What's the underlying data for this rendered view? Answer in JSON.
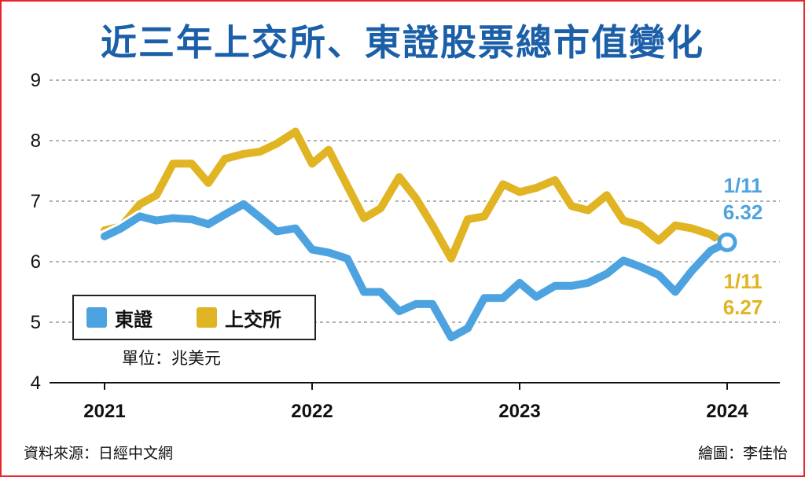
{
  "title": "近三年上交所、東證股票總市值變化",
  "unit": "單位：兆美元",
  "source": "資料來源：日經中文網",
  "credit": "繪圖：李佳怡",
  "colors": {
    "tse": "#4da3e0",
    "sse": "#e0b422",
    "title": "#1b5fa8",
    "border": "#e8242c"
  },
  "chart_data": {
    "type": "line",
    "title": "近三年上交所、東證股票總市值變化",
    "ylabel": "",
    "xlabel": "",
    "ylim": [
      4,
      9
    ],
    "yticks": [
      4,
      5,
      6,
      7,
      8,
      9
    ],
    "xlim": [
      2021,
      2024
    ],
    "xticks": [
      "2021",
      "2022",
      "2023",
      "2024"
    ],
    "grid": true,
    "legend": "lower-left",
    "series": [
      {
        "name": "東證",
        "color": "#4da3e0",
        "x": [
          2021.0,
          2021.08,
          2021.17,
          2021.25,
          2021.33,
          2021.42,
          2021.5,
          2021.58,
          2021.67,
          2021.75,
          2021.83,
          2021.92,
          2022.0,
          2022.08,
          2022.17,
          2022.25,
          2022.33,
          2022.42,
          2022.5,
          2022.58,
          2022.67,
          2022.75,
          2022.83,
          2022.92,
          2023.0,
          2023.08,
          2023.17,
          2023.25,
          2023.33,
          2023.42,
          2023.5,
          2023.58,
          2023.67,
          2023.75,
          2023.83,
          2023.92,
          2024.0
        ],
        "values": [
          6.42,
          6.55,
          6.75,
          6.68,
          6.72,
          6.7,
          6.62,
          6.78,
          6.95,
          6.73,
          6.5,
          6.55,
          6.2,
          6.15,
          6.05,
          5.5,
          5.5,
          5.18,
          5.3,
          5.3,
          4.75,
          4.9,
          5.4,
          5.4,
          5.65,
          5.42,
          5.6,
          5.6,
          5.65,
          5.8,
          6.02,
          5.92,
          5.78,
          5.5,
          5.85,
          6.18,
          6.32
        ]
      },
      {
        "name": "上交所",
        "color": "#e0b422",
        "x": [
          2021.0,
          2021.08,
          2021.17,
          2021.25,
          2021.33,
          2021.42,
          2021.5,
          2021.58,
          2021.67,
          2021.75,
          2021.83,
          2021.92,
          2022.0,
          2022.08,
          2022.17,
          2022.25,
          2022.33,
          2022.42,
          2022.5,
          2022.58,
          2022.67,
          2022.75,
          2022.83,
          2022.92,
          2023.0,
          2023.08,
          2023.17,
          2023.25,
          2023.33,
          2023.42,
          2023.5,
          2023.58,
          2023.67,
          2023.75,
          2023.83,
          2023.92,
          2024.0
        ],
        "values": [
          6.52,
          6.58,
          6.95,
          7.1,
          7.62,
          7.62,
          7.3,
          7.7,
          7.78,
          7.82,
          7.95,
          8.15,
          7.62,
          7.85,
          7.25,
          6.72,
          6.88,
          7.4,
          7.05,
          6.6,
          6.05,
          6.7,
          6.75,
          7.28,
          7.15,
          7.22,
          7.35,
          6.92,
          6.85,
          7.1,
          6.68,
          6.6,
          6.35,
          6.6,
          6.55,
          6.45,
          6.27
        ]
      }
    ],
    "annotations": [
      {
        "series": "東證",
        "date": "1/11",
        "value": "6.32"
      },
      {
        "series": "上交所",
        "date": "1/11",
        "value": "6.27"
      }
    ]
  },
  "legend": [
    {
      "label": "東證",
      "color": "#4da3e0"
    },
    {
      "label": "上交所",
      "color": "#e0b422"
    }
  ]
}
